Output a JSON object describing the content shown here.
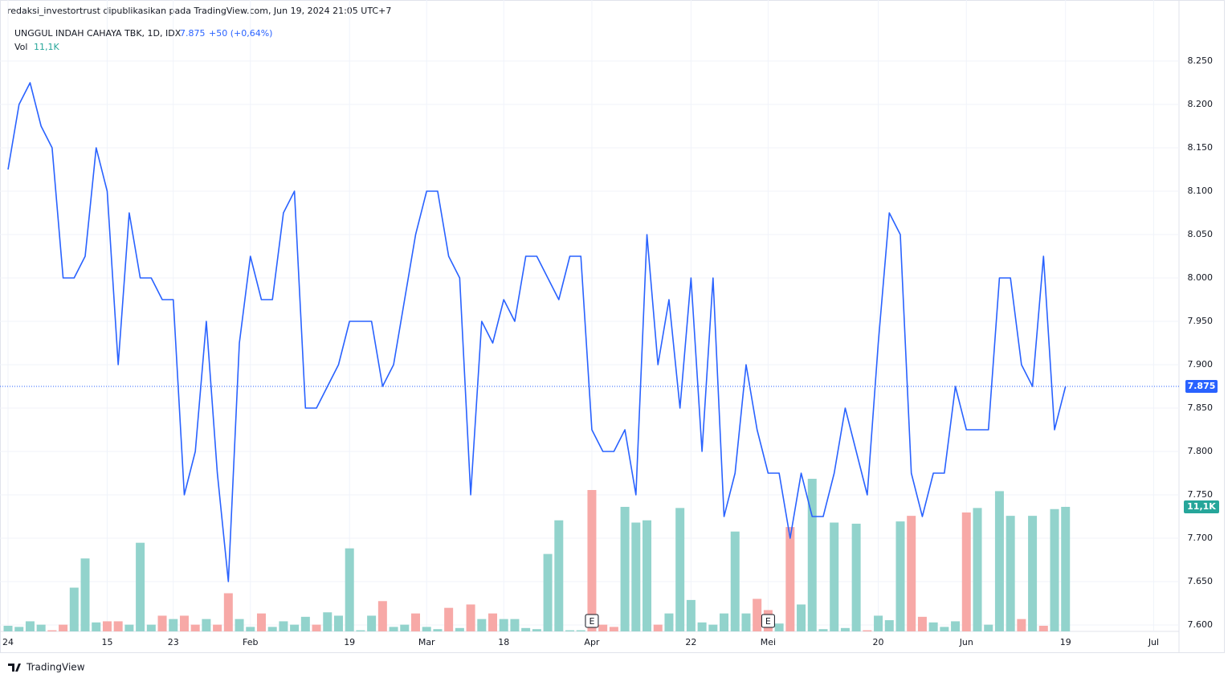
{
  "header": "redaksi_investortrust dipublikasikan pada TradingView.com, Jun 19, 2024 21:05 UTC+7",
  "footer": "TradingView",
  "chart_data": {
    "type": "line",
    "legend_change": "+50 (+0,64%)",
    "last_price": 7.875,
    "series": [
      {
        "name": "UNGGUL INDAH CAHAYA TBK, 1D, IDX",
        "color": "#2962ff",
        "values": [
          8.125,
          8.2,
          8.225,
          8.175,
          8.15,
          8.0,
          8.0,
          8.025,
          8.15,
          8.1,
          7.9,
          8.075,
          8.0,
          8.0,
          7.975,
          7.975,
          7.75,
          7.8,
          7.95,
          7.775,
          7.65,
          7.925,
          8.025,
          7.975,
          7.975,
          8.075,
          8.1,
          7.85,
          7.85,
          7.875,
          7.9,
          7.95,
          7.95,
          7.95,
          7.875,
          7.9,
          7.975,
          8.05,
          8.1,
          8.1,
          8.025,
          8.0,
          7.75,
          7.95,
          7.925,
          7.975,
          7.95,
          8.025,
          8.025,
          8.0,
          7.975,
          8.025,
          8.025,
          7.825,
          7.8,
          7.8,
          7.825,
          7.75,
          8.05,
          7.9,
          7.975,
          7.85,
          8.0,
          7.8,
          8.0,
          7.725,
          7.775,
          7.9,
          7.825,
          7.775,
          7.775,
          7.7,
          7.775,
          7.725,
          7.725,
          7.775,
          7.85,
          7.8,
          7.75,
          7.925,
          8.075,
          8.05,
          7.775,
          7.725,
          7.775,
          7.775,
          7.875,
          7.825,
          7.825,
          7.825,
          8.0,
          8.0,
          7.9,
          7.875,
          8.025,
          7.825,
          7.875
        ]
      }
    ],
    "volume": {
      "name": "Vol",
      "color_up": "#92d3cc",
      "color_down": "#f7a9a7",
      "last_label": {
        "value": 11.1,
        "label": "11,1K"
      },
      "values": [
        0.5,
        0.4,
        0.9,
        0.6,
        0.1,
        0.6,
        3.9,
        6.5,
        0.8,
        0.9,
        0.9,
        0.6,
        7.9,
        0.6,
        1.4,
        1.1,
        1.4,
        0.6,
        1.1,
        0.6,
        3.4,
        1.1,
        0.4,
        1.6,
        0.4,
        0.9,
        0.6,
        1.3,
        0.6,
        1.7,
        1.4,
        7.4,
        0.1,
        1.4,
        2.7,
        0.4,
        0.6,
        1.6,
        0.4,
        0.2,
        2.1,
        0.3,
        2.4,
        1.1,
        1.6,
        1.1,
        1.1,
        0.3,
        0.2,
        6.9,
        9.9,
        0.1,
        0.1,
        12.6,
        0.6,
        0.4,
        11.1,
        9.7,
        9.9,
        0.6,
        1.6,
        11.0,
        2.8,
        0.8,
        0.6,
        1.6,
        8.9,
        1.6,
        2.9,
        1.9,
        0.7,
        9.3,
        2.4,
        13.6,
        0.2,
        9.7,
        0.3,
        9.6,
        0.1,
        1.4,
        1.0,
        9.8,
        10.3,
        1.3,
        0.8,
        0.4,
        0.9,
        10.6,
        11.0,
        0.6,
        12.5,
        10.3,
        1.1,
        10.3,
        0.5,
        10.9,
        11.1
      ],
      "up": [
        true,
        true,
        true,
        true,
        false,
        false,
        true,
        true,
        true,
        false,
        false,
        true,
        true,
        true,
        false,
        true,
        false,
        false,
        true,
        false,
        false,
        true,
        true,
        false,
        true,
        true,
        true,
        true,
        false,
        true,
        true,
        true,
        true,
        true,
        false,
        true,
        true,
        false,
        true,
        true,
        false,
        true,
        false,
        true,
        false,
        true,
        true,
        true,
        true,
        true,
        true,
        true,
        true,
        false,
        false,
        false,
        true,
        true,
        true,
        false,
        true,
        true,
        true,
        true,
        true,
        true,
        true,
        true,
        false,
        false,
        true,
        false,
        true,
        true,
        true,
        true,
        true,
        true,
        false,
        true,
        true,
        true,
        false,
        false,
        true,
        true,
        true,
        false,
        true,
        true,
        true,
        true,
        false,
        true,
        false,
        true,
        true
      ],
      "vlim": [
        0,
        54.7
      ]
    },
    "events": [
      {
        "index": 53,
        "label": "E"
      },
      {
        "index": 69,
        "label": "E"
      }
    ],
    "xlim": [
      -0.73,
      106.3
    ],
    "xticks": [
      {
        "value": 0,
        "label": "24"
      },
      {
        "value": 9,
        "label": "15"
      },
      {
        "value": 15,
        "label": "23"
      },
      {
        "value": 22,
        "label": "Feb"
      },
      {
        "value": 31,
        "label": "19"
      },
      {
        "value": 38,
        "label": "Mar"
      },
      {
        "value": 45,
        "label": "18"
      },
      {
        "value": 53,
        "label": "Apr"
      },
      {
        "value": 62,
        "label": "22"
      },
      {
        "value": 69,
        "label": "Mei"
      },
      {
        "value": 79,
        "label": "20"
      },
      {
        "value": 87,
        "label": "Jun"
      },
      {
        "value": 96,
        "label": "19"
      },
      {
        "value": 104,
        "label": "Jul"
      }
    ],
    "ylim": [
      7.5926,
      8.3
    ],
    "yticks": [
      {
        "value": 7.6,
        "label": "7.600"
      },
      {
        "value": 7.65,
        "label": "7.650"
      },
      {
        "value": 7.7,
        "label": "7.700"
      },
      {
        "value": 7.75,
        "label": "7.750"
      },
      {
        "value": 7.8,
        "label": "7.800"
      },
      {
        "value": 7.85,
        "label": "7.850"
      },
      {
        "value": 7.9,
        "label": "7.900"
      },
      {
        "value": 7.95,
        "label": "7.950"
      },
      {
        "value": 8.0,
        "label": "8.000"
      },
      {
        "value": 8.05,
        "label": "8.050"
      },
      {
        "value": 8.1,
        "label": "8.100"
      },
      {
        "value": 8.15,
        "label": "8.150"
      },
      {
        "value": 8.2,
        "label": "8.200"
      },
      {
        "value": 8.25,
        "label": "8.250"
      }
    ],
    "grid": true
  }
}
